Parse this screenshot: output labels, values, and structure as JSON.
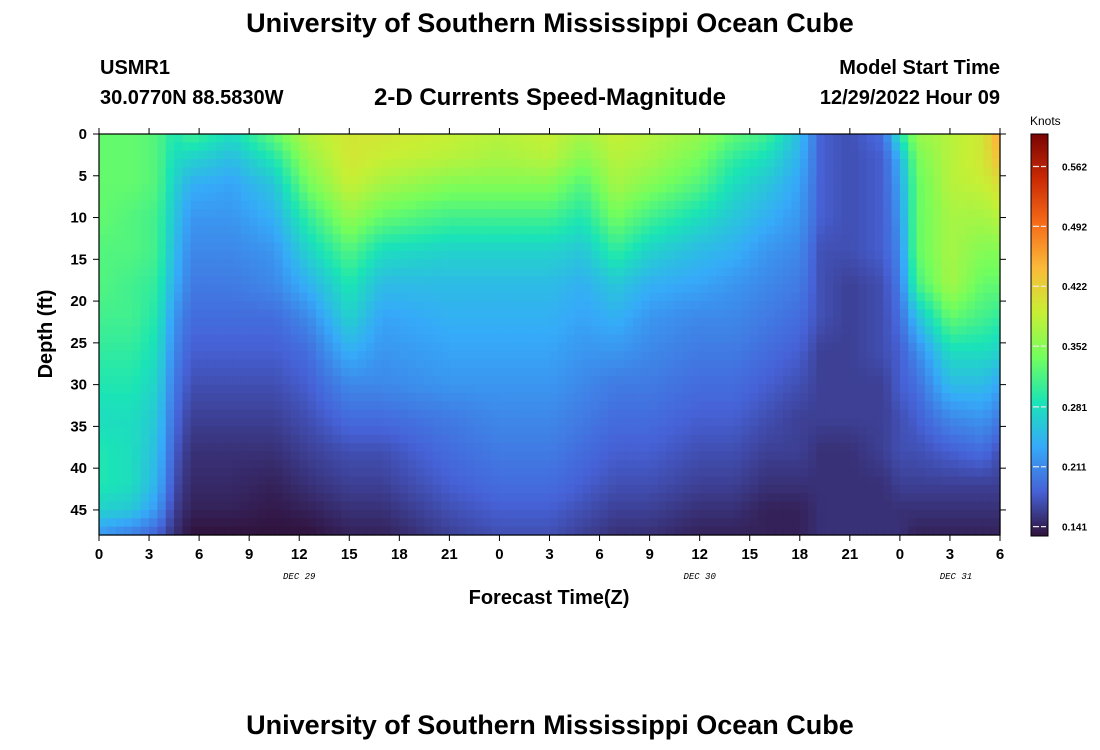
{
  "header": {
    "title": "University of Southern Mississippi Ocean Cube",
    "station": "USMR1",
    "coords": "30.0770N  88.5830W",
    "subtitle": "2-D Currents Speed-Magnitude",
    "model_label": "Model Start Time",
    "model_time": "12/29/2022 Hour 09"
  },
  "footer": {
    "title": "University of Southern Mississippi Ocean Cube"
  },
  "chart_data": {
    "type": "heatmap",
    "title": "2-D Currents Speed-Magnitude",
    "xlabel": "Forecast Time(Z)",
    "ylabel": "Depth (ft)",
    "x_tick_labels": [
      "0",
      "3",
      "6",
      "9",
      "12",
      "15",
      "18",
      "21",
      "0",
      "3",
      "6",
      "9",
      "12",
      "15",
      "18",
      "21",
      "0",
      "3",
      "6"
    ],
    "x_date_labels": [
      {
        "label": "DEC 29",
        "tick_index": 4
      },
      {
        "label": "DEC 30",
        "tick_index": 12
      },
      {
        "label": "DEC 31",
        "tick_index": 17
      }
    ],
    "y_tick_labels": [
      "0",
      "5",
      "10",
      "15",
      "20",
      "25",
      "30",
      "35",
      "40",
      "45"
    ],
    "y_ticks": [
      0,
      5,
      10,
      15,
      20,
      25,
      30,
      35,
      40,
      45
    ],
    "y_range": [
      0,
      48
    ],
    "x_range_hours": [
      0,
      54
    ],
    "colorbar": {
      "units": "Knots",
      "tick_labels": [
        "0.562",
        "0.492",
        "0.422",
        "0.352",
        "0.281",
        "0.211",
        "0.141"
      ],
      "ticks": [
        0.562,
        0.492,
        0.422,
        0.352,
        0.281,
        0.211,
        0.141
      ],
      "range": [
        0.13,
        0.6
      ],
      "colors": [
        "#30123b",
        "#4662d7",
        "#36aaf9",
        "#1ae4b6",
        "#72fe5e",
        "#c8ef34",
        "#faba39",
        "#f66b19",
        "#ca2a04",
        "#7a0403"
      ]
    },
    "depth_levels": [
      0,
      3,
      6,
      10,
      14,
      18,
      22,
      26,
      30,
      34,
      38,
      42,
      45,
      48
    ],
    "columns": [
      {
        "t": 0,
        "v": [
          0.33,
          0.33,
          0.33,
          0.33,
          0.32,
          0.32,
          0.31,
          0.3,
          0.29,
          0.28,
          0.29,
          0.29,
          0.27,
          0.22
        ]
      },
      {
        "t": 2,
        "v": [
          0.33,
          0.33,
          0.33,
          0.32,
          0.32,
          0.31,
          0.31,
          0.3,
          0.29,
          0.28,
          0.28,
          0.28,
          0.26,
          0.2
        ]
      },
      {
        "t": 3.5,
        "v": [
          0.32,
          0.32,
          0.32,
          0.31,
          0.31,
          0.3,
          0.29,
          0.28,
          0.27,
          0.26,
          0.25,
          0.24,
          0.22,
          0.18
        ]
      },
      {
        "t": 4.5,
        "v": [
          0.29,
          0.28,
          0.27,
          0.26,
          0.25,
          0.24,
          0.22,
          0.21,
          0.2,
          0.19,
          0.18,
          0.17,
          0.16,
          0.15
        ]
      },
      {
        "t": 5.5,
        "v": [
          0.31,
          0.27,
          0.24,
          0.22,
          0.21,
          0.2,
          0.19,
          0.18,
          0.17,
          0.16,
          0.15,
          0.145,
          0.14,
          0.13
        ]
      },
      {
        "t": 8,
        "v": [
          0.28,
          0.25,
          0.23,
          0.22,
          0.21,
          0.2,
          0.19,
          0.18,
          0.17,
          0.16,
          0.15,
          0.145,
          0.14,
          0.13
        ]
      },
      {
        "t": 10.5,
        "v": [
          0.33,
          0.29,
          0.26,
          0.24,
          0.22,
          0.21,
          0.19,
          0.18,
          0.17,
          0.16,
          0.15,
          0.14,
          0.135,
          0.13
        ]
      },
      {
        "t": 12.5,
        "v": [
          0.38,
          0.36,
          0.34,
          0.3,
          0.27,
          0.24,
          0.21,
          0.19,
          0.18,
          0.17,
          0.16,
          0.15,
          0.14,
          0.13
        ]
      },
      {
        "t": 15,
        "v": [
          0.4,
          0.4,
          0.39,
          0.36,
          0.32,
          0.29,
          0.27,
          0.24,
          0.21,
          0.19,
          0.17,
          0.16,
          0.15,
          0.14
        ]
      },
      {
        "t": 17,
        "v": [
          0.4,
          0.39,
          0.37,
          0.33,
          0.28,
          0.25,
          0.23,
          0.22,
          0.21,
          0.19,
          0.17,
          0.16,
          0.15,
          0.14
        ]
      },
      {
        "t": 21,
        "v": [
          0.39,
          0.38,
          0.35,
          0.31,
          0.27,
          0.25,
          0.24,
          0.23,
          0.22,
          0.2,
          0.19,
          0.18,
          0.17,
          0.16
        ]
      },
      {
        "t": 24,
        "v": [
          0.38,
          0.37,
          0.35,
          0.31,
          0.27,
          0.25,
          0.24,
          0.23,
          0.22,
          0.21,
          0.2,
          0.19,
          0.18,
          0.17
        ]
      },
      {
        "t": 27,
        "v": [
          0.39,
          0.38,
          0.35,
          0.31,
          0.27,
          0.25,
          0.24,
          0.23,
          0.22,
          0.21,
          0.2,
          0.19,
          0.18,
          0.17
        ]
      },
      {
        "t": 29,
        "v": [
          0.37,
          0.35,
          0.32,
          0.29,
          0.26,
          0.24,
          0.23,
          0.22,
          0.21,
          0.2,
          0.19,
          0.18,
          0.17,
          0.16
        ]
      },
      {
        "t": 31,
        "v": [
          0.39,
          0.38,
          0.37,
          0.34,
          0.3,
          0.26,
          0.24,
          0.22,
          0.2,
          0.19,
          0.18,
          0.17,
          0.16,
          0.15
        ]
      },
      {
        "t": 33,
        "v": [
          0.38,
          0.37,
          0.35,
          0.31,
          0.27,
          0.24,
          0.22,
          0.21,
          0.2,
          0.19,
          0.18,
          0.17,
          0.16,
          0.15
        ]
      },
      {
        "t": 36,
        "v": [
          0.36,
          0.34,
          0.32,
          0.28,
          0.25,
          0.23,
          0.21,
          0.2,
          0.19,
          0.18,
          0.17,
          0.16,
          0.15,
          0.14
        ]
      },
      {
        "t": 38,
        "v": [
          0.33,
          0.3,
          0.28,
          0.26,
          0.24,
          0.22,
          0.21,
          0.2,
          0.19,
          0.18,
          0.17,
          0.16,
          0.15,
          0.14
        ]
      },
      {
        "t": 40,
        "v": [
          0.31,
          0.28,
          0.26,
          0.24,
          0.22,
          0.21,
          0.2,
          0.19,
          0.18,
          0.17,
          0.16,
          0.15,
          0.14,
          0.14
        ]
      },
      {
        "t": 42,
        "v": [
          0.25,
          0.24,
          0.23,
          0.22,
          0.21,
          0.2,
          0.19,
          0.18,
          0.17,
          0.16,
          0.16,
          0.15,
          0.14,
          0.14
        ]
      },
      {
        "t": 43.3,
        "v": [
          0.18,
          0.18,
          0.18,
          0.18,
          0.17,
          0.17,
          0.17,
          0.16,
          0.16,
          0.16,
          0.15,
          0.15,
          0.15,
          0.15
        ]
      },
      {
        "t": 45,
        "v": [
          0.17,
          0.17,
          0.17,
          0.17,
          0.17,
          0.16,
          0.16,
          0.16,
          0.16,
          0.16,
          0.15,
          0.15,
          0.15,
          0.15
        ]
      },
      {
        "t": 47,
        "v": [
          0.19,
          0.18,
          0.18,
          0.18,
          0.18,
          0.17,
          0.17,
          0.17,
          0.16,
          0.16,
          0.16,
          0.15,
          0.15,
          0.15
        ]
      },
      {
        "t": 48,
        "v": [
          0.29,
          0.24,
          0.23,
          0.22,
          0.21,
          0.2,
          0.19,
          0.18,
          0.18,
          0.17,
          0.17,
          0.16,
          0.15,
          0.15
        ]
      },
      {
        "t": 49,
        "v": [
          0.36,
          0.34,
          0.33,
          0.33,
          0.33,
          0.31,
          0.25,
          0.21,
          0.19,
          0.18,
          0.17,
          0.16,
          0.15,
          0.14
        ]
      },
      {
        "t": 51,
        "v": [
          0.38,
          0.38,
          0.38,
          0.37,
          0.37,
          0.37,
          0.33,
          0.28,
          0.25,
          0.21,
          0.18,
          0.16,
          0.15,
          0.14
        ]
      },
      {
        "t": 53,
        "v": [
          0.4,
          0.4,
          0.39,
          0.37,
          0.35,
          0.33,
          0.31,
          0.28,
          0.25,
          0.22,
          0.19,
          0.16,
          0.15,
          0.14
        ]
      },
      {
        "t": 54,
        "v": [
          0.46,
          0.44,
          0.41,
          0.38,
          0.35,
          0.33,
          0.3,
          0.27,
          0.23,
          0.2,
          0.17,
          0.16,
          0.15,
          0.14
        ]
      }
    ]
  }
}
